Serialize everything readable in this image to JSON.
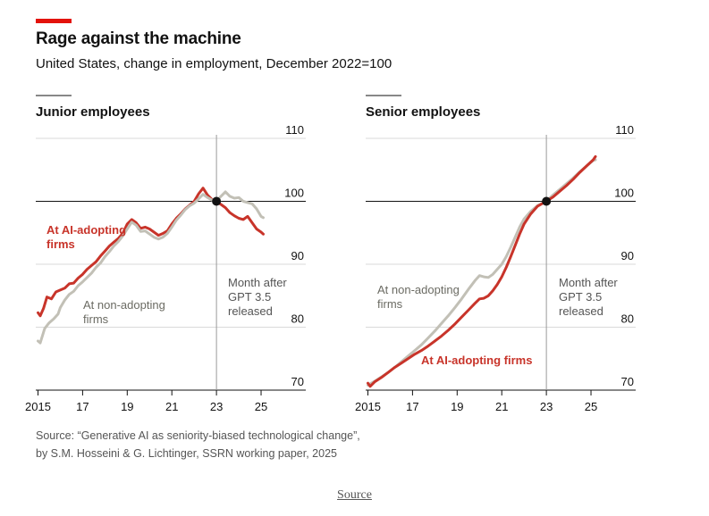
{
  "header": {
    "title": "Rage against the machine",
    "subtitle": "United States, change in employment, December 2022=100"
  },
  "source_note": {
    "line1": "Source: “Generative AI as seniority-biased technological change”,",
    "line2": "by S.M. Hosseini & G. Lichtinger, SSRN working paper, 2025"
  },
  "source_link": "Source",
  "colors": {
    "ai": "#c8342a",
    "non": "#c2c0b6",
    "brand": "#e3120b",
    "grid": "#d9d9d9",
    "axis": "#121212"
  },
  "chart_data": [
    {
      "type": "line",
      "title": "Junior employees",
      "xlabel": "",
      "ylabel": "",
      "x_range": [
        2014.9,
        2025.4
      ],
      "ylim": [
        70,
        110
      ],
      "y_ticks": [
        "110",
        "100",
        "90",
        "80",
        "70"
      ],
      "x_tick_labels": [
        "2015",
        "17",
        "19",
        "21",
        "23",
        "25"
      ],
      "annotation": {
        "x": 2023.0,
        "y": 100,
        "lines": [
          "Month after",
          "GPT 3.5",
          "released"
        ]
      },
      "series": [
        {
          "name": "At AI-adopting firms",
          "label_lines": [
            "At AI-adopting",
            "firms"
          ],
          "color_key": "ai",
          "points": [
            [
              2015.0,
              82.3
            ],
            [
              2015.1,
              81.8
            ],
            [
              2015.25,
              83.0
            ],
            [
              2015.4,
              84.8
            ],
            [
              2015.6,
              84.5
            ],
            [
              2015.8,
              85.6
            ],
            [
              2016.0,
              85.9
            ],
            [
              2016.2,
              86.2
            ],
            [
              2016.4,
              86.9
            ],
            [
              2016.6,
              87.0
            ],
            [
              2016.8,
              87.8
            ],
            [
              2017.0,
              88.4
            ],
            [
              2017.2,
              89.2
            ],
            [
              2017.4,
              89.8
            ],
            [
              2017.6,
              90.4
            ],
            [
              2017.8,
              91.3
            ],
            [
              2018.0,
              92.1
            ],
            [
              2018.2,
              92.9
            ],
            [
              2018.4,
              93.5
            ],
            [
              2018.6,
              94.1
            ],
            [
              2018.8,
              94.9
            ],
            [
              2019.0,
              96.4
            ],
            [
              2019.2,
              97.1
            ],
            [
              2019.4,
              96.6
            ],
            [
              2019.6,
              95.7
            ],
            [
              2019.8,
              95.9
            ],
            [
              2020.0,
              95.6
            ],
            [
              2020.2,
              95.1
            ],
            [
              2020.4,
              94.6
            ],
            [
              2020.6,
              94.9
            ],
            [
              2020.8,
              95.3
            ],
            [
              2021.0,
              96.4
            ],
            [
              2021.2,
              97.3
            ],
            [
              2021.4,
              98.0
            ],
            [
              2021.6,
              98.8
            ],
            [
              2021.8,
              99.4
            ],
            [
              2022.0,
              100.0
            ],
            [
              2022.2,
              101.2
            ],
            [
              2022.4,
              102.1
            ],
            [
              2022.6,
              101.0
            ],
            [
              2022.8,
              100.3
            ],
            [
              2023.0,
              100.0
            ],
            [
              2023.2,
              99.5
            ],
            [
              2023.4,
              99.0
            ],
            [
              2023.6,
              98.2
            ],
            [
              2023.8,
              97.7
            ],
            [
              2024.0,
              97.3
            ],
            [
              2024.2,
              97.1
            ],
            [
              2024.4,
              97.6
            ],
            [
              2024.6,
              96.6
            ],
            [
              2024.8,
              95.6
            ],
            [
              2025.0,
              95.1
            ],
            [
              2025.1,
              94.8
            ]
          ]
        },
        {
          "name": "At non-adopting firms",
          "label_lines": [
            "At non-adopting",
            "firms"
          ],
          "color_key": "non",
          "points": [
            [
              2015.0,
              77.8
            ],
            [
              2015.1,
              77.5
            ],
            [
              2015.3,
              79.8
            ],
            [
              2015.5,
              80.7
            ],
            [
              2015.7,
              81.3
            ],
            [
              2015.9,
              82.1
            ],
            [
              2016.0,
              83.1
            ],
            [
              2016.2,
              84.3
            ],
            [
              2016.4,
              85.2
            ],
            [
              2016.6,
              85.7
            ],
            [
              2016.8,
              86.6
            ],
            [
              2017.0,
              87.2
            ],
            [
              2017.2,
              87.9
            ],
            [
              2017.4,
              88.6
            ],
            [
              2017.6,
              89.5
            ],
            [
              2017.8,
              90.2
            ],
            [
              2018.0,
              91.2
            ],
            [
              2018.2,
              92.0
            ],
            [
              2018.4,
              92.9
            ],
            [
              2018.6,
              93.6
            ],
            [
              2018.8,
              94.5
            ],
            [
              2019.0,
              95.6
            ],
            [
              2019.2,
              96.7
            ],
            [
              2019.4,
              96.2
            ],
            [
              2019.6,
              95.2
            ],
            [
              2019.8,
              95.3
            ],
            [
              2020.0,
              94.8
            ],
            [
              2020.2,
              94.3
            ],
            [
              2020.4,
              94.0
            ],
            [
              2020.6,
              94.3
            ],
            [
              2020.8,
              94.9
            ],
            [
              2021.0,
              95.9
            ],
            [
              2021.2,
              97.0
            ],
            [
              2021.4,
              97.8
            ],
            [
              2021.6,
              98.7
            ],
            [
              2021.8,
              99.3
            ],
            [
              2022.0,
              99.7
            ],
            [
              2022.2,
              100.4
            ],
            [
              2022.4,
              101.1
            ],
            [
              2022.6,
              100.6
            ],
            [
              2022.8,
              100.2
            ],
            [
              2023.0,
              100.0
            ],
            [
              2023.2,
              100.8
            ],
            [
              2023.4,
              101.5
            ],
            [
              2023.6,
              100.8
            ],
            [
              2023.8,
              100.5
            ],
            [
              2024.0,
              100.6
            ],
            [
              2024.2,
              100.0
            ],
            [
              2024.4,
              99.8
            ],
            [
              2024.6,
              99.6
            ],
            [
              2024.8,
              98.8
            ],
            [
              2025.0,
              97.6
            ],
            [
              2025.1,
              97.4
            ]
          ]
        }
      ]
    },
    {
      "type": "line",
      "title": "Senior employees",
      "xlabel": "",
      "ylabel": "",
      "x_range": [
        2014.9,
        2025.4
      ],
      "ylim": [
        70,
        110
      ],
      "y_ticks": [
        "110",
        "100",
        "90",
        "80",
        "70"
      ],
      "x_tick_labels": [
        "2015",
        "17",
        "19",
        "21",
        "23",
        "25"
      ],
      "annotation": {
        "x": 2023.0,
        "y": 100,
        "lines": [
          "Month after",
          "GPT 3.5",
          "released"
        ]
      },
      "series": [
        {
          "name": "At non-adopting firms",
          "label_lines": [
            "At non-adopting",
            "firms"
          ],
          "color_key": "non",
          "points": [
            [
              2015.0,
              70.8
            ],
            [
              2015.3,
              71.4
            ],
            [
              2015.6,
              72.1
            ],
            [
              2015.9,
              72.8
            ],
            [
              2016.2,
              73.6
            ],
            [
              2016.5,
              74.5
            ],
            [
              2016.8,
              75.4
            ],
            [
              2017.1,
              76.3
            ],
            [
              2017.4,
              77.2
            ],
            [
              2017.7,
              78.3
            ],
            [
              2018.0,
              79.4
            ],
            [
              2018.3,
              80.6
            ],
            [
              2018.6,
              81.8
            ],
            [
              2018.9,
              83.1
            ],
            [
              2019.2,
              84.5
            ],
            [
              2019.5,
              86.0
            ],
            [
              2019.8,
              87.4
            ],
            [
              2020.0,
              88.2
            ],
            [
              2020.2,
              88.0
            ],
            [
              2020.4,
              87.9
            ],
            [
              2020.6,
              88.4
            ],
            [
              2020.8,
              89.2
            ],
            [
              2021.0,
              90.0
            ],
            [
              2021.2,
              91.2
            ],
            [
              2021.4,
              92.7
            ],
            [
              2021.6,
              94.3
            ],
            [
              2021.8,
              95.9
            ],
            [
              2022.0,
              97.2
            ],
            [
              2022.3,
              98.4
            ],
            [
              2022.6,
              99.3
            ],
            [
              2023.0,
              100.0
            ],
            [
              2023.3,
              101.0
            ],
            [
              2023.6,
              101.9
            ],
            [
              2023.9,
              102.8
            ],
            [
              2024.2,
              103.7
            ],
            [
              2024.5,
              104.7
            ],
            [
              2024.8,
              105.6
            ],
            [
              2025.1,
              106.5
            ],
            [
              2025.2,
              106.6
            ]
          ]
        },
        {
          "name": "At AI-adopting firms",
          "label_lines": [
            "At AI-adopting firms"
          ],
          "color_key": "ai",
          "points": [
            [
              2015.0,
              71.1
            ],
            [
              2015.1,
              70.6
            ],
            [
              2015.3,
              71.3
            ],
            [
              2015.6,
              72.0
            ],
            [
              2015.9,
              72.8
            ],
            [
              2016.2,
              73.6
            ],
            [
              2016.5,
              74.3
            ],
            [
              2016.8,
              75.0
            ],
            [
              2017.1,
              75.7
            ],
            [
              2017.4,
              76.3
            ],
            [
              2017.7,
              77.0
            ],
            [
              2018.0,
              77.8
            ],
            [
              2018.3,
              78.6
            ],
            [
              2018.6,
              79.5
            ],
            [
              2018.9,
              80.5
            ],
            [
              2019.2,
              81.6
            ],
            [
              2019.5,
              82.7
            ],
            [
              2019.8,
              83.8
            ],
            [
              2020.0,
              84.5
            ],
            [
              2020.2,
              84.6
            ],
            [
              2020.4,
              85.0
            ],
            [
              2020.6,
              85.8
            ],
            [
              2020.8,
              86.8
            ],
            [
              2021.0,
              88.0
            ],
            [
              2021.2,
              89.5
            ],
            [
              2021.4,
              91.2
            ],
            [
              2021.6,
              93.0
            ],
            [
              2021.8,
              94.8
            ],
            [
              2022.0,
              96.4
            ],
            [
              2022.3,
              98.0
            ],
            [
              2022.6,
              99.2
            ],
            [
              2023.0,
              100.0
            ],
            [
              2023.3,
              100.7
            ],
            [
              2023.6,
              101.6
            ],
            [
              2023.9,
              102.5
            ],
            [
              2024.2,
              103.5
            ],
            [
              2024.5,
              104.6
            ],
            [
              2024.8,
              105.6
            ],
            [
              2025.1,
              106.6
            ],
            [
              2025.2,
              107.1
            ]
          ]
        }
      ]
    }
  ]
}
